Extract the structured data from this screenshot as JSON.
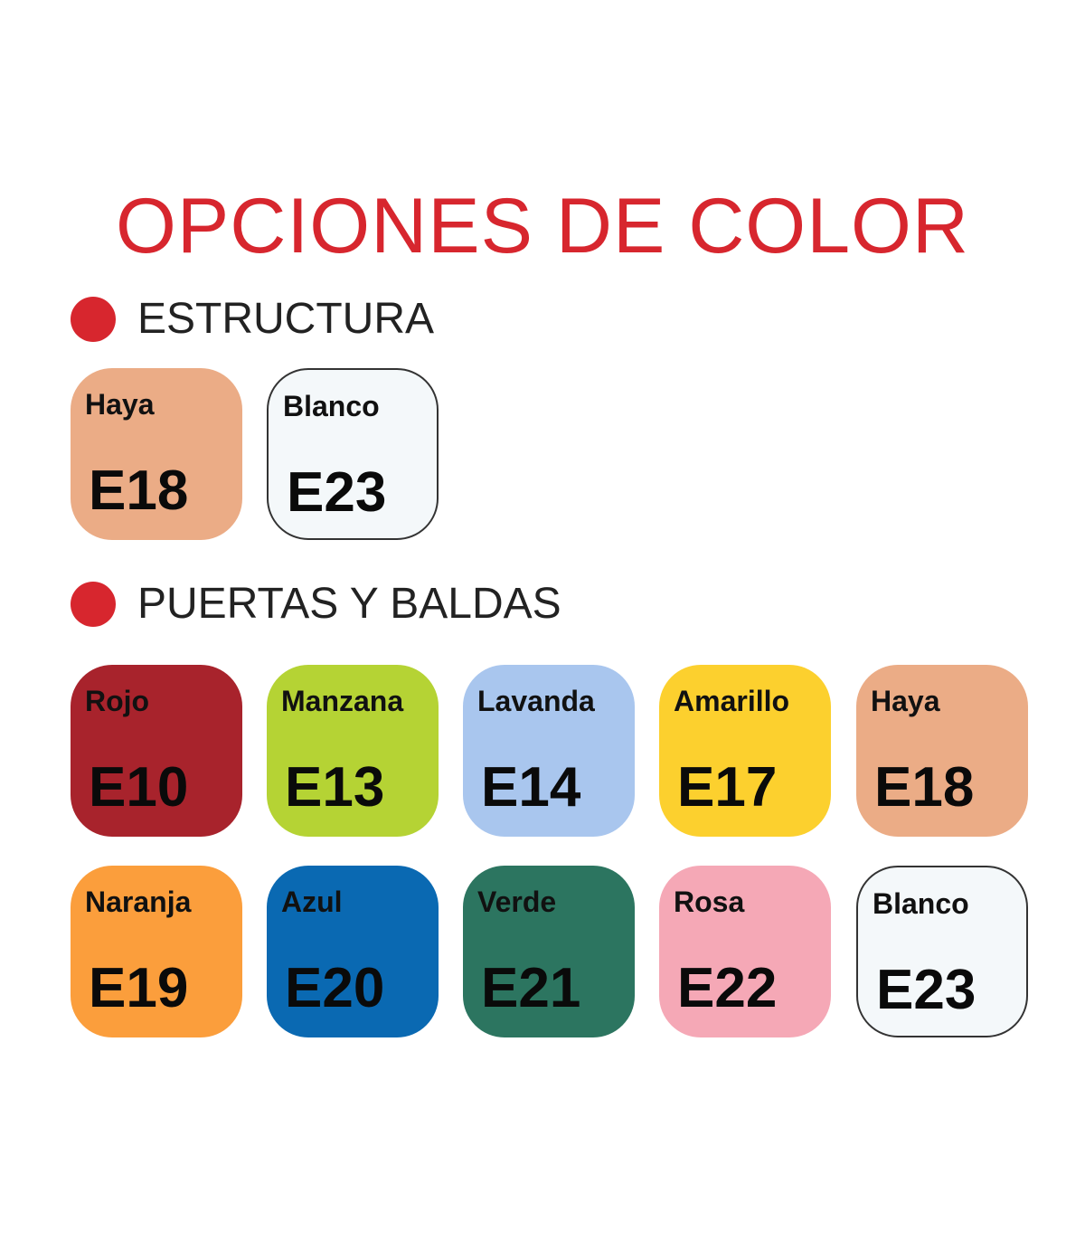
{
  "title": "OPCIONES DE COLOR",
  "sections": [
    {
      "label": "ESTRUCTURA",
      "swatches": [
        {
          "name": "Haya",
          "code": "E18",
          "color": "#ebac86"
        },
        {
          "name": "Blanco",
          "code": "E23",
          "color": "#f4f8fa"
        }
      ]
    },
    {
      "label": "PUERTAS Y BALDAS",
      "swatches": [
        {
          "name": "Rojo",
          "code": "E10",
          "color": "#a8232c"
        },
        {
          "name": "Manzana",
          "code": "E13",
          "color": "#b5d334"
        },
        {
          "name": "Lavanda",
          "code": "E14",
          "color": "#a9c6ee"
        },
        {
          "name": "Amarillo",
          "code": "E17",
          "color": "#fcd02e"
        },
        {
          "name": "Haya",
          "code": "E18",
          "color": "#ebac86"
        },
        {
          "name": "Naranja",
          "code": "E19",
          "color": "#fb9e3c"
        },
        {
          "name": "Azul",
          "code": "E20",
          "color": "#0a69b2"
        },
        {
          "name": "Verde",
          "code": "E21",
          "color": "#2c7560"
        },
        {
          "name": "Rosa",
          "code": "E22",
          "color": "#f5a8b6"
        },
        {
          "name": "Blanco",
          "code": "E23",
          "color": "#f4f8fa"
        }
      ]
    }
  ]
}
